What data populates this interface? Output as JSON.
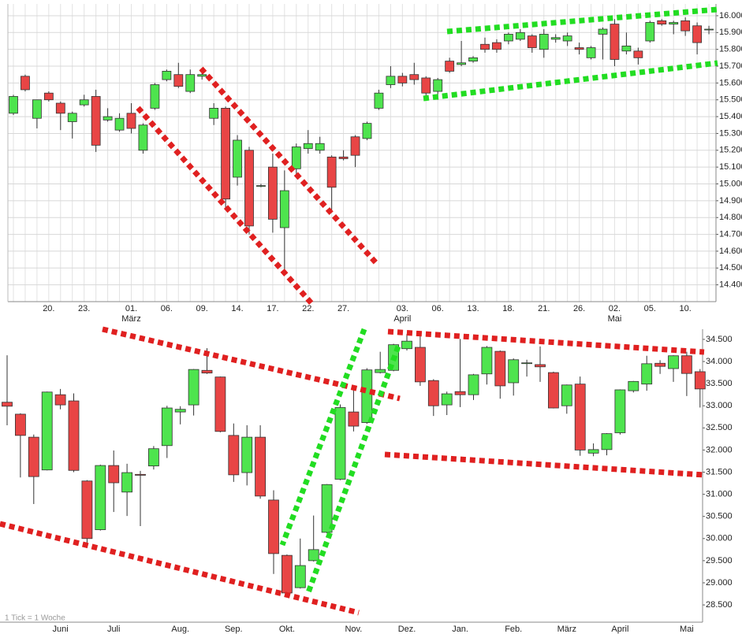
{
  "chart_data": [
    {
      "type": "candlestick",
      "up_color": "#4ee44e",
      "down_color": "#e84545",
      "grid": true,
      "categories": [
        null,
        null,
        null,
        "20.",
        null,
        null,
        "23.",
        null,
        null,
        null,
        "01.",
        null,
        null,
        "06.",
        null,
        null,
        "09.",
        null,
        null,
        "14.",
        null,
        null,
        "17.",
        null,
        null,
        "22.",
        null,
        null,
        "27.",
        null,
        null,
        null,
        null,
        "03.",
        null,
        null,
        "06.",
        null,
        null,
        "13.",
        null,
        null,
        "18.",
        null,
        null,
        "21.",
        null,
        null,
        "26.",
        null,
        null,
        "02.",
        null,
        null,
        "05.",
        null,
        null,
        "10.",
        null,
        null
      ],
      "months": [
        null,
        null,
        null,
        null,
        null,
        null,
        null,
        null,
        null,
        null,
        "März",
        null,
        null,
        null,
        null,
        null,
        null,
        null,
        null,
        null,
        null,
        null,
        null,
        null,
        null,
        null,
        null,
        null,
        null,
        null,
        null,
        null,
        null,
        "April",
        null,
        null,
        null,
        null,
        null,
        null,
        null,
        null,
        null,
        null,
        null,
        null,
        null,
        null,
        null,
        null,
        null,
        "Mai",
        null,
        null,
        null,
        null,
        null,
        null,
        null,
        null
      ],
      "open": [
        15420,
        15640,
        15390,
        15540,
        15480,
        15370,
        15470,
        15520,
        15380,
        15320,
        15420,
        15200,
        15450,
        15620,
        15650,
        15550,
        15640,
        15390,
        15450,
        15040,
        15200,
        14990,
        15100,
        14740,
        15090,
        15210,
        15200,
        15160,
        15160,
        15280,
        15270,
        15450,
        15590,
        15640,
        15650,
        15630,
        15550,
        15730,
        15710,
        15730,
        15830,
        15840,
        15850,
        15860,
        15880,
        15800,
        15860,
        15850,
        15810,
        15750,
        15890,
        15950,
        15790,
        15790,
        15850,
        15970,
        15950,
        15970,
        15940,
        15920
      ],
      "high": [
        15530,
        15650,
        15500,
        15550,
        15490,
        15430,
        15530,
        15560,
        15450,
        15420,
        15480,
        15360,
        15600,
        15680,
        15720,
        15680,
        15690,
        15480,
        15460,
        15290,
        15220,
        15000,
        15180,
        15080,
        15240,
        15320,
        15280,
        15170,
        15200,
        15290,
        15370,
        15560,
        15700,
        15660,
        15720,
        15640,
        15630,
        15750,
        15850,
        15760,
        15870,
        15860,
        15900,
        15920,
        15890,
        15920,
        15890,
        15900,
        15840,
        15820,
        15930,
        15980,
        15900,
        15810,
        15970,
        15980,
        15970,
        15990,
        15960,
        15940
      ],
      "low": [
        15410,
        15550,
        15330,
        15490,
        15320,
        15270,
        15460,
        15190,
        15370,
        15310,
        15300,
        15180,
        15440,
        15610,
        15570,
        15540,
        15620,
        15350,
        14850,
        14990,
        14700,
        14980,
        14710,
        14480,
        15050,
        15180,
        15180,
        14830,
        15140,
        15100,
        15260,
        15440,
        15570,
        15580,
        15590,
        15500,
        15500,
        15660,
        15700,
        15720,
        15780,
        15780,
        15830,
        15850,
        15780,
        15750,
        15840,
        15820,
        15770,
        15740,
        15740,
        15700,
        15770,
        15710,
        15840,
        15940,
        15890,
        15880,
        15770,
        15890
      ],
      "close": [
        15520,
        15560,
        15500,
        15500,
        15420,
        15420,
        15500,
        15230,
        15400,
        15390,
        15330,
        15350,
        15590,
        15670,
        15580,
        15650,
        15650,
        15450,
        14910,
        15260,
        14750,
        14990,
        14790,
        14960,
        15220,
        15240,
        15240,
        14980,
        15150,
        15170,
        15360,
        15540,
        15640,
        15600,
        15620,
        15540,
        15620,
        15670,
        15720,
        15750,
        15800,
        15800,
        15890,
        15900,
        15810,
        15890,
        15870,
        15880,
        15800,
        15810,
        15920,
        15740,
        15820,
        15750,
        15960,
        15950,
        15960,
        15910,
        15840,
        15920
      ],
      "ylim": [
        14300,
        16070
      ],
      "yticks": [
        {
          "value": 14400,
          "label": "14.400"
        },
        {
          "value": 14500,
          "label": "14.500"
        },
        {
          "value": 14600,
          "label": "14.600"
        },
        {
          "value": 14700,
          "label": "14.700"
        },
        {
          "value": 14800,
          "label": "14.800"
        },
        {
          "value": 14900,
          "label": "14.900"
        },
        {
          "value": 15000,
          "label": "15.000"
        },
        {
          "value": 15100,
          "label": "15.100"
        },
        {
          "value": 15200,
          "label": "15.200"
        },
        {
          "value": 15300,
          "label": "15.300"
        },
        {
          "value": 15400,
          "label": "15.400"
        },
        {
          "value": 15500,
          "label": "15.500"
        },
        {
          "value": 15600,
          "label": "15.600"
        },
        {
          "value": 15700,
          "label": "15.700"
        },
        {
          "value": 15800,
          "label": "15.800"
        },
        {
          "value": 15900,
          "label": "15.900"
        },
        {
          "value": 16000,
          "label": "16.000"
        }
      ]
    },
    {
      "type": "candlestick",
      "up_color": "#4ee44e",
      "down_color": "#e84545",
      "grid": false,
      "note": "1 Tick = 1 Woche",
      "categories": [
        null,
        null,
        null,
        null,
        "Juni",
        null,
        null,
        null,
        "Juli",
        null,
        null,
        null,
        null,
        "Aug.",
        null,
        null,
        null,
        "Sep.",
        null,
        null,
        null,
        "Okt.",
        null,
        null,
        null,
        null,
        "Nov.",
        null,
        null,
        null,
        "Dez.",
        null,
        null,
        null,
        "Jan.",
        null,
        null,
        null,
        "Feb.",
        null,
        null,
        null,
        "März",
        null,
        null,
        null,
        "April",
        null,
        null,
        null,
        null,
        "Mai",
        null
      ],
      "open": [
        33080,
        32810,
        32290,
        31550,
        33250,
        33110,
        31300,
        30200,
        31650,
        31050,
        31450,
        31640,
        32100,
        32860,
        33020,
        33800,
        33650,
        32330,
        31490,
        32290,
        30870,
        29620,
        28890,
        29500,
        30140,
        31340,
        32860,
        32620,
        33750,
        33800,
        34290,
        34320,
        33570,
        33020,
        33320,
        33250,
        33720,
        34230,
        33520,
        33970,
        33930,
        33750,
        33000,
        33490,
        31930,
        32010,
        32390,
        33340,
        33490,
        33960,
        33840,
        34130,
        33770
      ],
      "high": [
        34140,
        32830,
        32350,
        33320,
        33380,
        33280,
        31320,
        31670,
        31990,
        31690,
        31530,
        32090,
        33000,
        32990,
        33830,
        34300,
        33660,
        32600,
        32560,
        32560,
        31090,
        29640,
        30000,
        30520,
        31230,
        33030,
        33420,
        33850,
        34220,
        34400,
        34620,
        34570,
        33600,
        33320,
        34510,
        33720,
        34350,
        34250,
        34070,
        34040,
        34340,
        33770,
        33480,
        33660,
        32150,
        32380,
        33370,
        33560,
        34130,
        34030,
        34140,
        34220,
        33830
      ],
      "low": [
        32560,
        31380,
        30780,
        31540,
        32920,
        31500,
        29830,
        30180,
        30600,
        30510,
        30280,
        31560,
        31820,
        32580,
        32780,
        33720,
        32400,
        31280,
        31200,
        30900,
        29200,
        28700,
        28870,
        29480,
        30120,
        31320,
        32420,
        32590,
        33730,
        33780,
        34250,
        33450,
        32770,
        32790,
        32970,
        33130,
        33480,
        33160,
        33230,
        33660,
        33540,
        32940,
        32820,
        31870,
        31860,
        31880,
        32350,
        33300,
        33340,
        33720,
        33540,
        33220,
        32960
      ],
      "close": [
        32990,
        32330,
        31400,
        33310,
        33020,
        31540,
        30000,
        31650,
        31260,
        31490,
        31430,
        32030,
        32950,
        32920,
        33820,
        33740,
        32420,
        31440,
        32290,
        30960,
        29660,
        28770,
        29390,
        29750,
        31220,
        32960,
        32540,
        33810,
        33820,
        34380,
        34460,
        33540,
        33000,
        33270,
        33250,
        33700,
        34320,
        33450,
        34040,
        33970,
        33880,
        32950,
        33470,
        32000,
        32010,
        32370,
        33360,
        33550,
        33950,
        33890,
        34130,
        33730,
        33380
      ],
      "ylim": [
        28110,
        34730
      ],
      "yticks": [
        {
          "value": 28500,
          "label": "28.500"
        },
        {
          "value": 29000,
          "label": "29.000"
        },
        {
          "value": 29500,
          "label": "29.500"
        },
        {
          "value": 30000,
          "label": "30.000"
        },
        {
          "value": 30500,
          "label": "30.500"
        },
        {
          "value": 31000,
          "label": "31.000"
        },
        {
          "value": 31500,
          "label": "31.500"
        },
        {
          "value": 32000,
          "label": "32.000"
        },
        {
          "value": 32500,
          "label": "32.500"
        },
        {
          "value": 33000,
          "label": "33.000"
        },
        {
          "value": 33500,
          "label": "33.500"
        },
        {
          "value": 34000,
          "label": "34.000"
        },
        {
          "value": 34500,
          "label": "34.500"
        }
      ]
    }
  ]
}
